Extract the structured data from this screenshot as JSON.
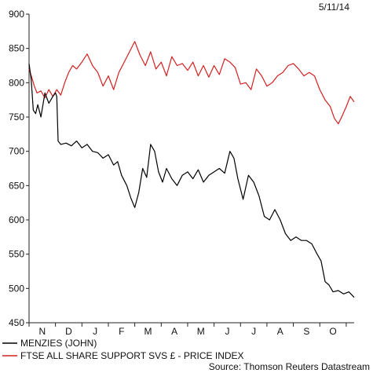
{
  "date_label": "5/11/14",
  "source": "Source: Thomson Reuters Datastream",
  "colors": {
    "menzies": "#000000",
    "ftse": "#d42020",
    "axis": "#222222"
  },
  "chart_data": {
    "type": "line",
    "title": "",
    "xlabel": "",
    "ylabel": "",
    "ylim": [
      450,
      900
    ],
    "yticks": [
      450,
      500,
      550,
      600,
      650,
      700,
      750,
      800,
      850,
      900
    ],
    "x_domain": [
      0,
      12.3
    ],
    "categories": [
      "N",
      "D",
      "J",
      "F",
      "M",
      "A",
      "M",
      "J",
      "J",
      "A",
      "S",
      "O"
    ],
    "grid": false,
    "legend_position": "bottom-left",
    "series": [
      {
        "name": "MENZIES (JOHN)",
        "color": "#000000",
        "x": [
          0,
          0.08,
          0.16,
          0.25,
          0.33,
          0.45,
          0.6,
          0.75,
          0.9,
          1.0,
          1.05,
          1.1,
          1.2,
          1.4,
          1.6,
          1.8,
          2.0,
          2.2,
          2.4,
          2.6,
          2.8,
          3.0,
          3.2,
          3.35,
          3.5,
          3.7,
          3.85,
          4.0,
          4.15,
          4.3,
          4.45,
          4.6,
          4.75,
          4.9,
          5.05,
          5.2,
          5.4,
          5.6,
          5.8,
          6.0,
          6.2,
          6.4,
          6.6,
          6.8,
          7.0,
          7.2,
          7.4,
          7.6,
          7.75,
          7.9,
          8.1,
          8.3,
          8.5,
          8.7,
          8.9,
          9.1,
          9.3,
          9.5,
          9.7,
          9.9,
          10.1,
          10.3,
          10.5,
          10.7,
          10.9,
          11.05,
          11.2,
          11.35,
          11.5,
          11.7,
          11.9,
          12.1,
          12.3
        ],
        "values": [
          828,
          805,
          760,
          755,
          768,
          750,
          785,
          770,
          780,
          785,
          780,
          715,
          710,
          712,
          708,
          715,
          705,
          710,
          700,
          698,
          690,
          695,
          680,
          685,
          665,
          650,
          632,
          618,
          640,
          675,
          662,
          710,
          700,
          670,
          655,
          675,
          660,
          650,
          665,
          670,
          660,
          673,
          655,
          665,
          670,
          675,
          668,
          700,
          690,
          660,
          630,
          665,
          655,
          635,
          605,
          600,
          615,
          600,
          580,
          570,
          575,
          570,
          570,
          565,
          550,
          540,
          510,
          505,
          495,
          497,
          492,
          495,
          487
        ]
      },
      {
        "name": "FTSE ALL SHARE SUPPORT SVS £ - PRICE INDEX",
        "color": "#d42020",
        "x": [
          0,
          0.1,
          0.2,
          0.3,
          0.45,
          0.6,
          0.75,
          0.9,
          1.05,
          1.2,
          1.35,
          1.5,
          1.65,
          1.8,
          2.0,
          2.2,
          2.4,
          2.6,
          2.8,
          3.0,
          3.2,
          3.4,
          3.6,
          3.8,
          4.0,
          4.2,
          4.4,
          4.6,
          4.8,
          5.0,
          5.2,
          5.4,
          5.6,
          5.8,
          6.0,
          6.2,
          6.4,
          6.6,
          6.8,
          7.0,
          7.2,
          7.4,
          7.6,
          7.8,
          8.0,
          8.2,
          8.4,
          8.6,
          8.8,
          9.0,
          9.2,
          9.4,
          9.6,
          9.8,
          10.0,
          10.2,
          10.4,
          10.6,
          10.8,
          11.0,
          11.2,
          11.4,
          11.55,
          11.7,
          11.85,
          12.0,
          12.15,
          12.3
        ],
        "values": [
          820,
          808,
          795,
          785,
          788,
          778,
          790,
          780,
          790,
          782,
          800,
          815,
          825,
          820,
          830,
          842,
          825,
          815,
          795,
          810,
          790,
          815,
          830,
          845,
          860,
          840,
          825,
          845,
          820,
          830,
          810,
          838,
          825,
          828,
          818,
          830,
          810,
          825,
          808,
          825,
          812,
          835,
          830,
          822,
          798,
          800,
          790,
          820,
          810,
          795,
          800,
          810,
          815,
          825,
          828,
          820,
          810,
          815,
          810,
          790,
          775,
          765,
          748,
          740,
          752,
          765,
          780,
          772
        ]
      }
    ]
  }
}
